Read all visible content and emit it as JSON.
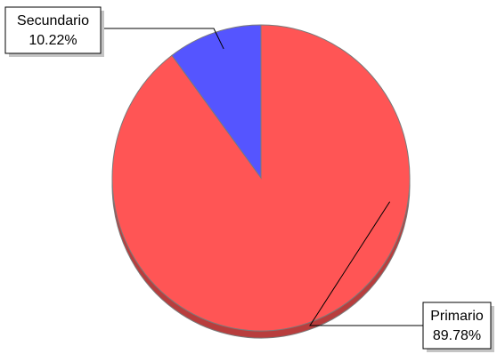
{
  "chart_data": {
    "type": "pie",
    "title": "",
    "slices": [
      {
        "name": "Primario",
        "value": 89.78,
        "value_label": "89.78%",
        "color": "#ff5555"
      },
      {
        "name": "Secundario",
        "value": 10.22,
        "value_label": "10.22%",
        "color": "#5555ff"
      }
    ],
    "legend": "none",
    "label_style": "callout-boxes"
  }
}
